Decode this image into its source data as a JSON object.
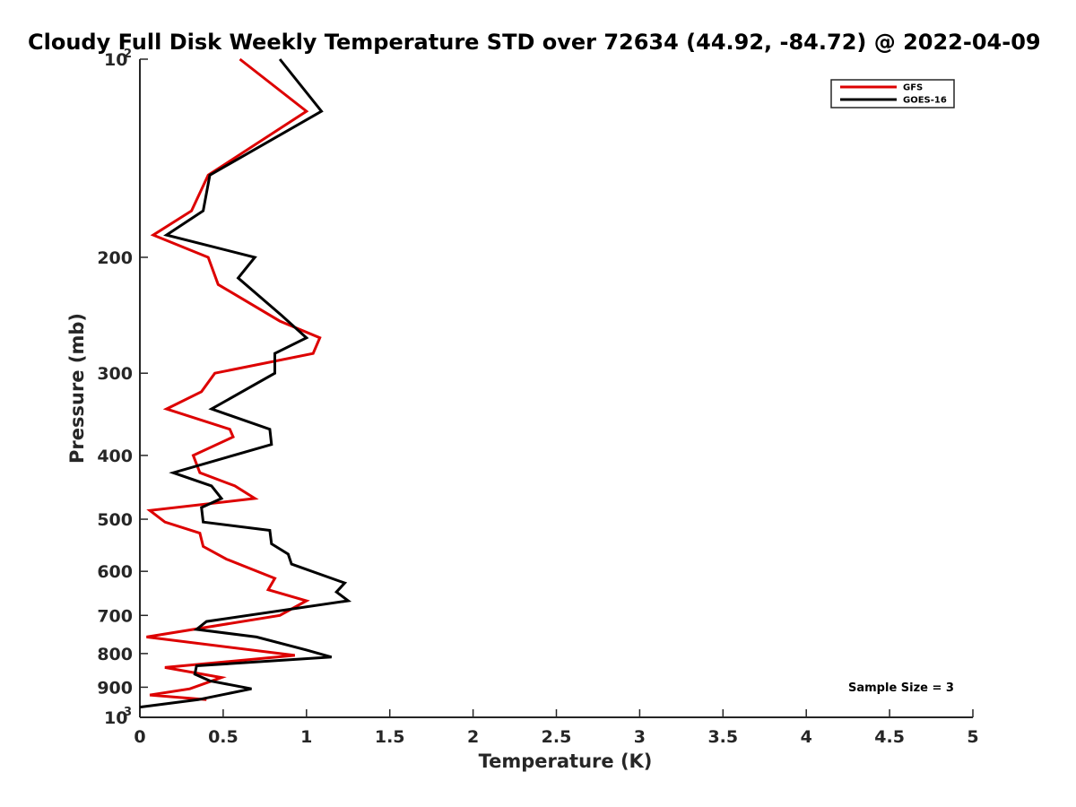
{
  "chart_data": {
    "type": "line",
    "title": "Cloudy Full Disk Weekly Temperature STD over 72634 (44.92, -84.72) @ 2022-04-09",
    "xlabel": "Temperature (K)",
    "ylabel": "Pressure (mb)",
    "xlim": [
      0,
      5
    ],
    "ylim": [
      100,
      1000
    ],
    "y_scale": "log",
    "y_reversed": true,
    "grid": false,
    "legend_position": "top-right",
    "x_ticks": [
      {
        "value": 0,
        "label": "0"
      },
      {
        "value": 0.5,
        "label": "0.5"
      },
      {
        "value": 1,
        "label": "1"
      },
      {
        "value": 1.5,
        "label": "1.5"
      },
      {
        "value": 2,
        "label": "2"
      },
      {
        "value": 2.5,
        "label": "2.5"
      },
      {
        "value": 3,
        "label": "3"
      },
      {
        "value": 3.5,
        "label": "3.5"
      },
      {
        "value": 4,
        "label": "4"
      },
      {
        "value": 4.5,
        "label": "4.5"
      },
      {
        "value": 5,
        "label": "5"
      }
    ],
    "y_ticks": [
      {
        "value": 100,
        "label": "10",
        "sup": "2"
      },
      {
        "value": 200,
        "label": "200"
      },
      {
        "value": 300,
        "label": "300"
      },
      {
        "value": 400,
        "label": "400"
      },
      {
        "value": 500,
        "label": "500"
      },
      {
        "value": 600,
        "label": "600"
      },
      {
        "value": 700,
        "label": "700"
      },
      {
        "value": 800,
        "label": "800"
      },
      {
        "value": 900,
        "label": "900"
      },
      {
        "value": 1000,
        "label": "10",
        "sup": "3"
      }
    ],
    "annotation": "Sample Size = 3",
    "series": [
      {
        "name": "GFS",
        "color": "#dd0000",
        "points": [
          {
            "x": 0.6,
            "y": 100
          },
          {
            "x": 1.0,
            "y": 120
          },
          {
            "x": 0.41,
            "y": 150
          },
          {
            "x": 0.31,
            "y": 170
          },
          {
            "x": 0.08,
            "y": 185
          },
          {
            "x": 0.41,
            "y": 200
          },
          {
            "x": 0.47,
            "y": 220
          },
          {
            "x": 0.84,
            "y": 250
          },
          {
            "x": 1.08,
            "y": 265
          },
          {
            "x": 1.04,
            "y": 280
          },
          {
            "x": 0.45,
            "y": 300
          },
          {
            "x": 0.37,
            "y": 320
          },
          {
            "x": 0.16,
            "y": 340
          },
          {
            "x": 0.54,
            "y": 365
          },
          {
            "x": 0.56,
            "y": 375
          },
          {
            "x": 0.32,
            "y": 400
          },
          {
            "x": 0.36,
            "y": 425
          },
          {
            "x": 0.57,
            "y": 445
          },
          {
            "x": 0.69,
            "y": 465
          },
          {
            "x": 0.06,
            "y": 485
          },
          {
            "x": 0.15,
            "y": 505
          },
          {
            "x": 0.36,
            "y": 525
          },
          {
            "x": 0.38,
            "y": 550
          },
          {
            "x": 0.52,
            "y": 575
          },
          {
            "x": 0.81,
            "y": 615
          },
          {
            "x": 0.77,
            "y": 640
          },
          {
            "x": 1.0,
            "y": 665
          },
          {
            "x": 0.84,
            "y": 700
          },
          {
            "x": 0.04,
            "y": 755
          },
          {
            "x": 0.93,
            "y": 805
          },
          {
            "x": 0.15,
            "y": 840
          },
          {
            "x": 0.49,
            "y": 870
          },
          {
            "x": 0.3,
            "y": 905
          },
          {
            "x": 0.06,
            "y": 925
          },
          {
            "x": 0.4,
            "y": 940
          }
        ]
      },
      {
        "name": "GOES-16",
        "color": "#000000",
        "points": [
          {
            "x": 0.84,
            "y": 100
          },
          {
            "x": 1.09,
            "y": 120
          },
          {
            "x": 0.42,
            "y": 150
          },
          {
            "x": 0.38,
            "y": 170
          },
          {
            "x": 0.16,
            "y": 185
          },
          {
            "x": 0.69,
            "y": 200
          },
          {
            "x": 0.59,
            "y": 215
          },
          {
            "x": 0.85,
            "y": 245
          },
          {
            "x": 1.0,
            "y": 265
          },
          {
            "x": 0.81,
            "y": 280
          },
          {
            "x": 0.81,
            "y": 300
          },
          {
            "x": 0.43,
            "y": 340
          },
          {
            "x": 0.78,
            "y": 365
          },
          {
            "x": 0.79,
            "y": 385
          },
          {
            "x": 0.2,
            "y": 425
          },
          {
            "x": 0.43,
            "y": 445
          },
          {
            "x": 0.49,
            "y": 465
          },
          {
            "x": 0.37,
            "y": 480
          },
          {
            "x": 0.38,
            "y": 505
          },
          {
            "x": 0.78,
            "y": 520
          },
          {
            "x": 0.79,
            "y": 545
          },
          {
            "x": 0.89,
            "y": 565
          },
          {
            "x": 0.91,
            "y": 585
          },
          {
            "x": 1.23,
            "y": 625
          },
          {
            "x": 1.18,
            "y": 645
          },
          {
            "x": 1.25,
            "y": 665
          },
          {
            "x": 0.4,
            "y": 715
          },
          {
            "x": 0.34,
            "y": 735
          },
          {
            "x": 0.7,
            "y": 755
          },
          {
            "x": 1.0,
            "y": 790
          },
          {
            "x": 1.15,
            "y": 810
          },
          {
            "x": 0.34,
            "y": 835
          },
          {
            "x": 0.33,
            "y": 860
          },
          {
            "x": 0.42,
            "y": 880
          },
          {
            "x": 0.67,
            "y": 905
          },
          {
            "x": 0.35,
            "y": 940
          },
          {
            "x": 0,
            "y": 965
          }
        ]
      }
    ]
  }
}
